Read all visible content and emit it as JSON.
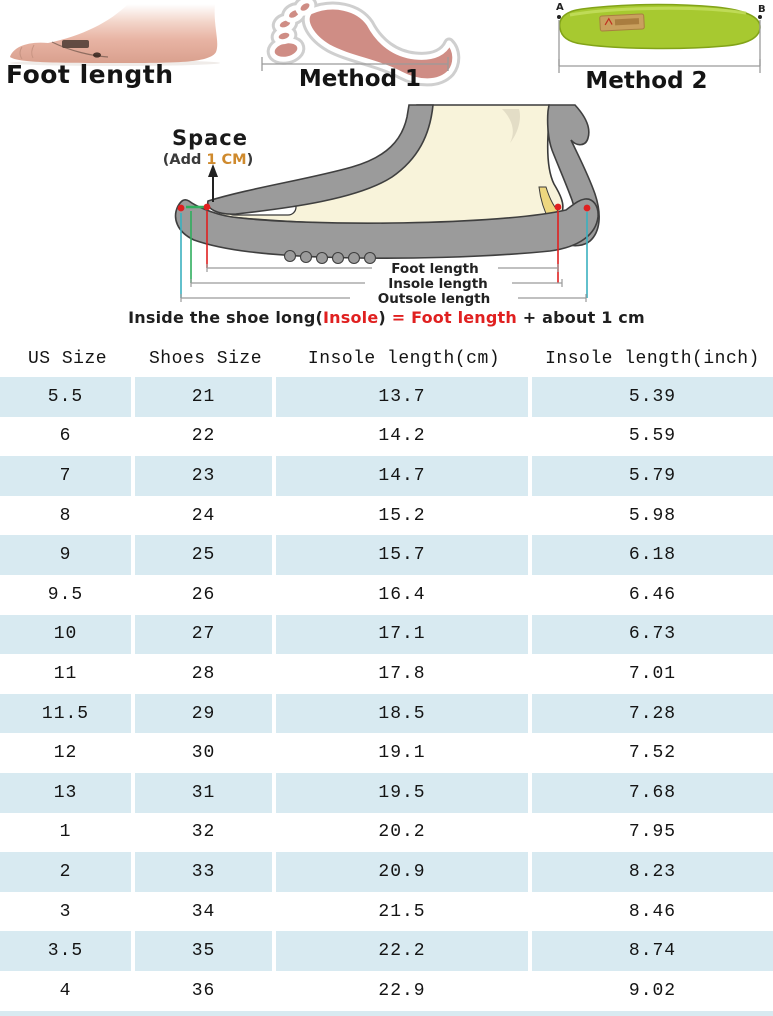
{
  "figures": {
    "foot_photo": {
      "label": "Foot length"
    },
    "method1": {
      "label": "Method 1"
    },
    "method2": {
      "label": "Method 2",
      "marker_a": "A",
      "marker_b": "B"
    }
  },
  "diagram": {
    "space_title": "Space",
    "space_note_prefix": "(Add ",
    "space_note_value": "1 CM",
    "space_note_suffix": ")",
    "measure_labels": [
      "Foot length",
      "Insole length",
      "Outsole length"
    ],
    "caption_parts": {
      "p1": "Inside the shoe long(",
      "insole": "Insole",
      "p2": ") ",
      "eq": "=",
      "foot": " Foot length ",
      "p3": "+ about 1 cm"
    }
  },
  "colors": {
    "stripe": "#d8eaf1",
    "red_accent": "#e02020",
    "space_highlight": "#cf8a2d",
    "insole_green": "#a7c930",
    "footprint_pink": "#cf8d85",
    "shoe_gray": "#9b9b9b",
    "insole_yellow": "#eed77f",
    "foot_cream": "#f8f3da",
    "guide_green": "#2fae5d",
    "guide_teal": "#3ab0c0"
  },
  "chart_data": {
    "type": "table",
    "columns": [
      "US Size",
      "Shoes Size",
      "Insole length(cm)",
      "Insole length(inch)"
    ],
    "rows": [
      [
        "5.5",
        "21",
        "13.7",
        "5.39"
      ],
      [
        "6",
        "22",
        "14.2",
        "5.59"
      ],
      [
        "7",
        "23",
        "14.7",
        "5.79"
      ],
      [
        "8",
        "24",
        "15.2",
        "5.98"
      ],
      [
        "9",
        "25",
        "15.7",
        "6.18"
      ],
      [
        "9.5",
        "26",
        "16.4",
        "6.46"
      ],
      [
        "10",
        "27",
        "17.1",
        "6.73"
      ],
      [
        "11",
        "28",
        "17.8",
        "7.01"
      ],
      [
        "11.5",
        "29",
        "18.5",
        "7.28"
      ],
      [
        "12",
        "30",
        "19.1",
        "7.52"
      ],
      [
        "13",
        "31",
        "19.5",
        "7.68"
      ],
      [
        "1",
        "32",
        "20.2",
        "7.95"
      ],
      [
        "2",
        "33",
        "20.9",
        "8.23"
      ],
      [
        "3",
        "34",
        "21.5",
        "8.46"
      ],
      [
        "3.5",
        "35",
        "22.2",
        "8.74"
      ],
      [
        "4",
        "36",
        "22.9",
        "9.02"
      ]
    ],
    "stripe_rows": "odd rows (1st,3rd,...) light blue",
    "layout": "header row + 16 data rows, 4 centered columns"
  }
}
